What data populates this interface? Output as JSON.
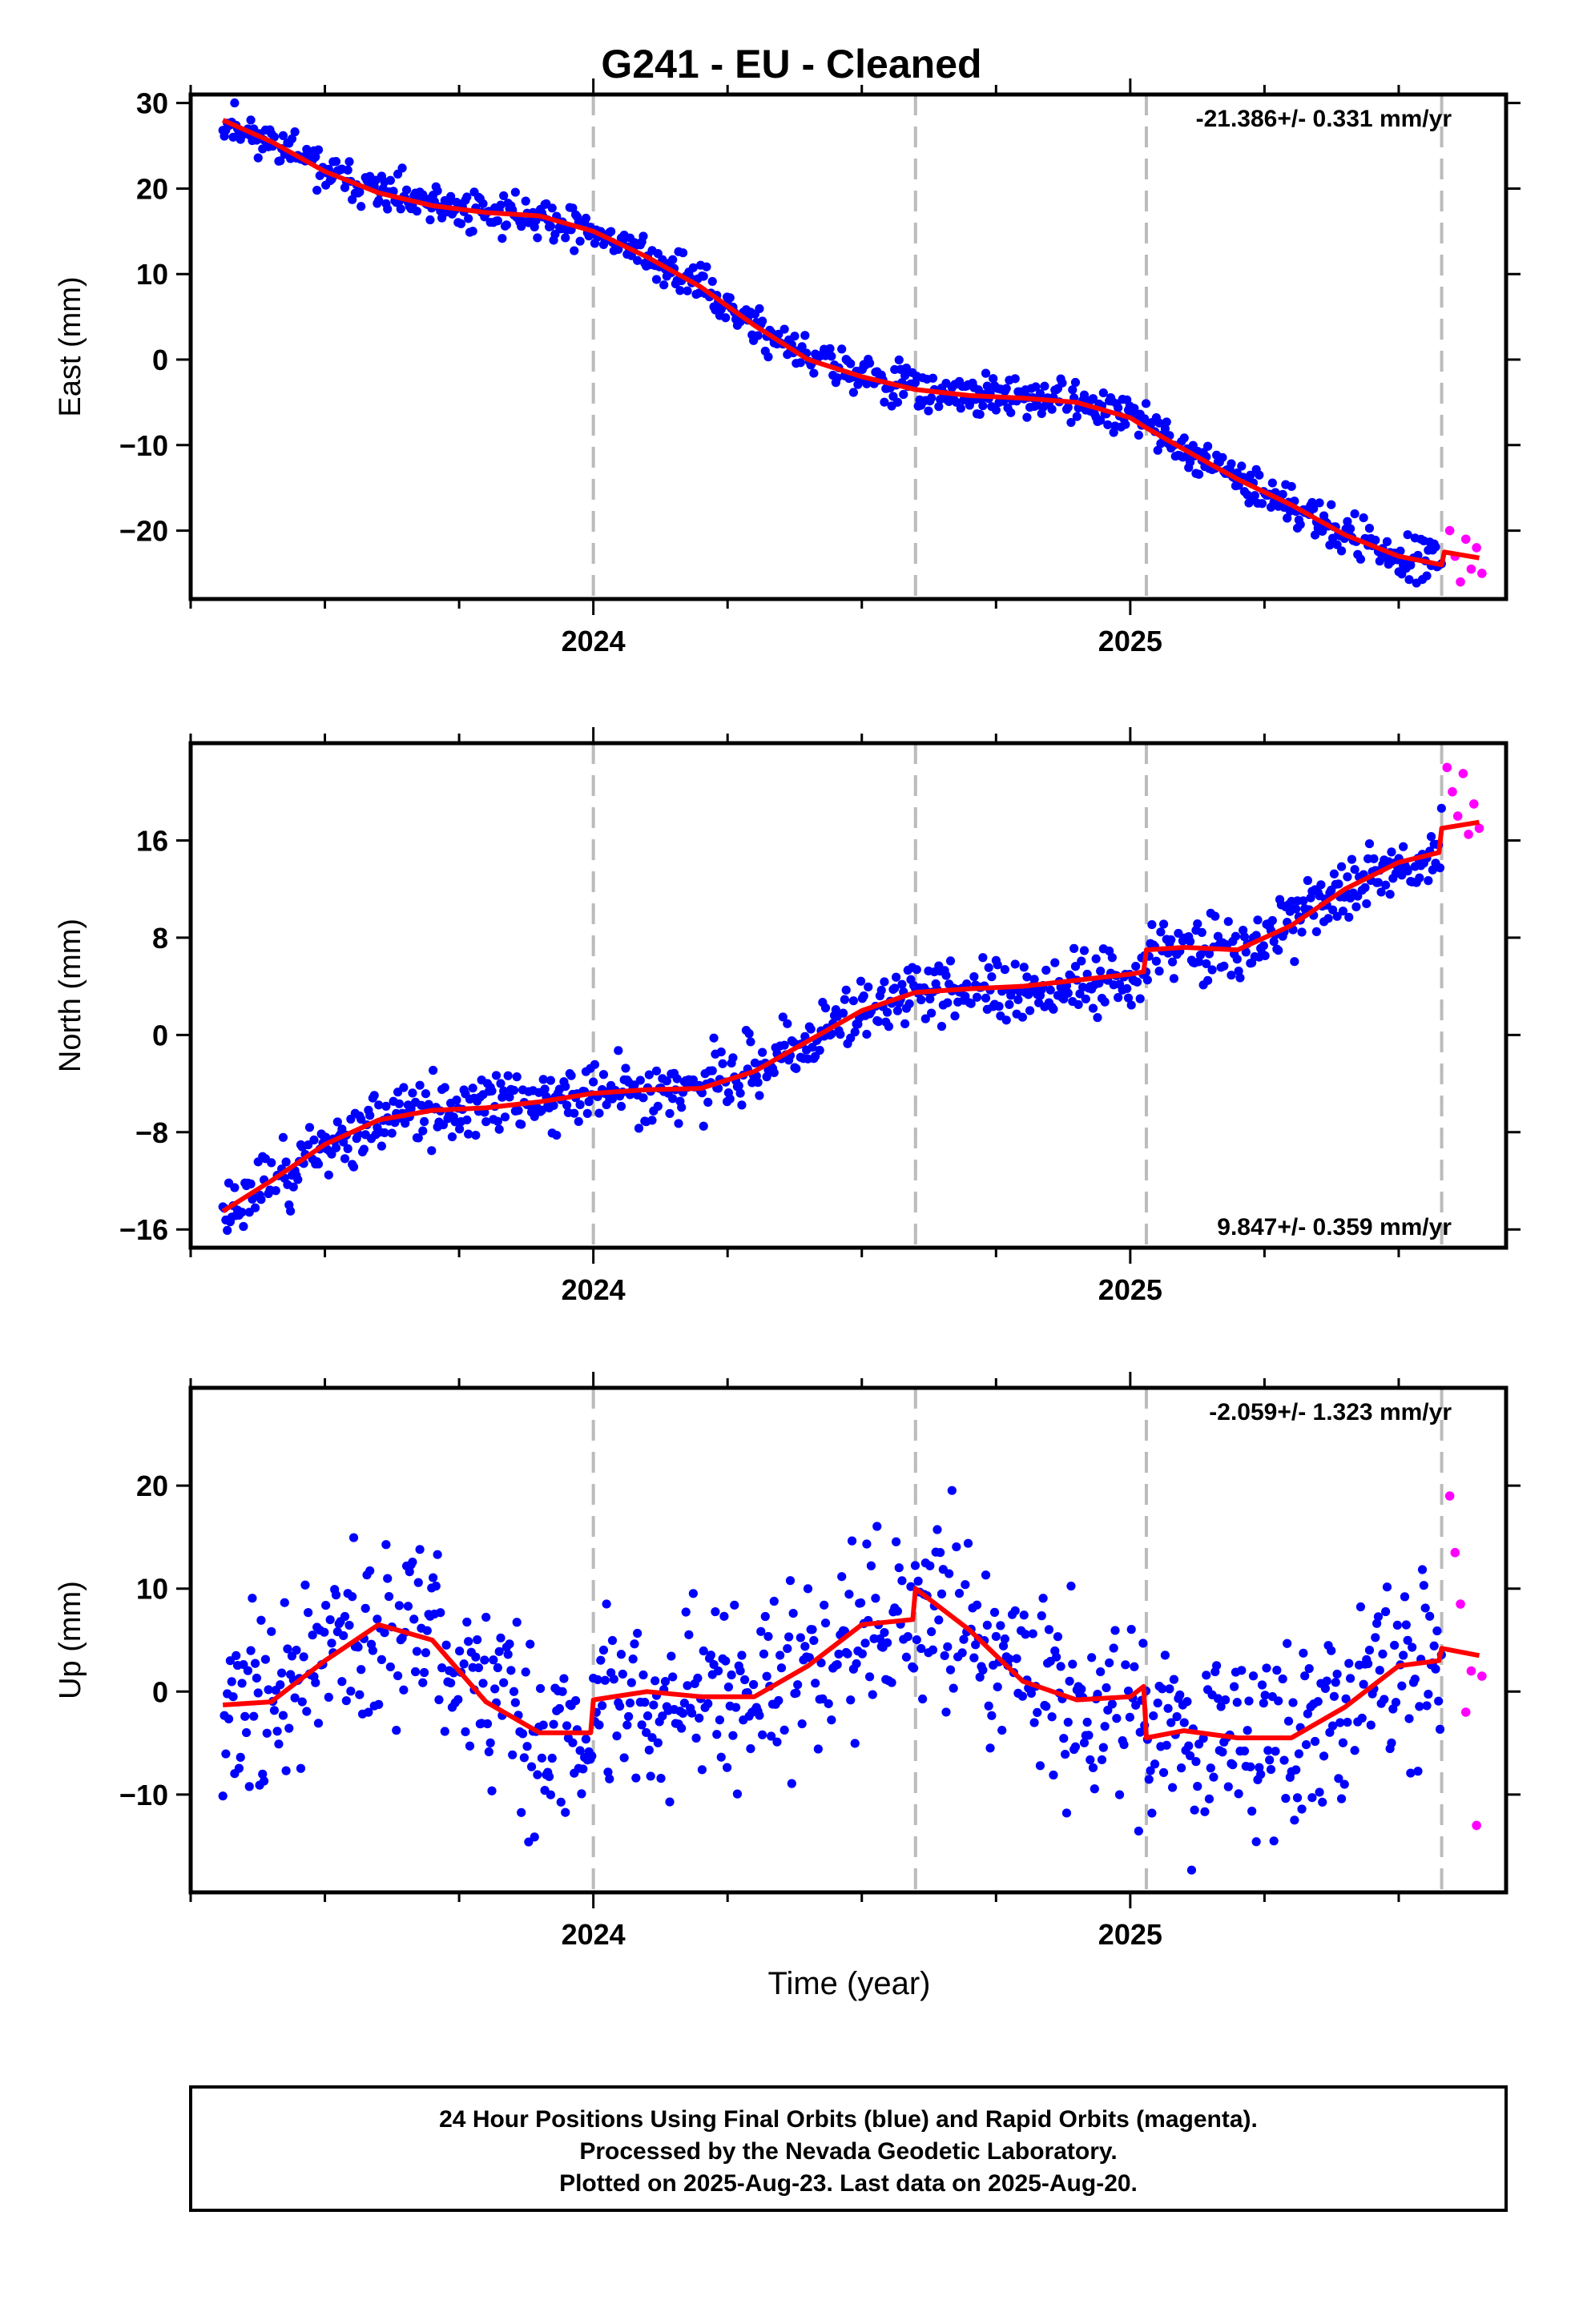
{
  "title": "G241  - EU - Cleaned",
  "footer": {
    "line1": "24 Hour Positions Using Final Orbits (blue) and Rapid Orbits (magenta).",
    "line2": "Processed by the Nevada Geodetic Laboratory.",
    "line3": "Plotted on 2025-Aug-23. Last data on 2025-Aug-20."
  },
  "colors": {
    "final": "#0000ff",
    "rapid": "#ff00ff",
    "model": "#ff0000",
    "event_line": "#bbbbbb"
  },
  "chart_data": [
    {
      "type": "scatter",
      "ylabel": "East (mm)",
      "xlabel": "",
      "rate_label": "-21.386+/- 0.331 mm/yr",
      "rate_position": "top-right",
      "xlim": [
        2023.25,
        2025.7
      ],
      "ylim": [
        -28,
        31
      ],
      "xticks": [
        2024,
        2025
      ],
      "yticks": [
        -20,
        -10,
        0,
        10,
        20,
        30
      ],
      "event_lines": [
        2024,
        2024.6,
        2025.03,
        2025.58
      ],
      "trend_knots": [
        [
          2023.31,
          28
        ],
        [
          2023.4,
          25.5
        ],
        [
          2023.5,
          22
        ],
        [
          2023.6,
          19.5
        ],
        [
          2023.7,
          18
        ],
        [
          2023.8,
          17.2
        ],
        [
          2023.9,
          16.8
        ],
        [
          2024.0,
          15
        ],
        [
          2024.1,
          12
        ],
        [
          2024.2,
          8.5
        ],
        [
          2024.3,
          4
        ],
        [
          2024.4,
          0
        ],
        [
          2024.5,
          -2
        ],
        [
          2024.6,
          -3.5
        ],
        [
          2024.7,
          -4.2
        ],
        [
          2024.8,
          -4.5
        ],
        [
          2024.9,
          -5
        ],
        [
          2025.0,
          -6.8
        ],
        [
          2025.03,
          -8
        ],
        [
          2025.1,
          -10.5
        ],
        [
          2025.2,
          -14
        ],
        [
          2025.3,
          -17
        ],
        [
          2025.4,
          -20.5
        ],
        [
          2025.5,
          -23
        ],
        [
          2025.58,
          -24
        ],
        [
          2025.585,
          -22.5
        ],
        [
          2025.65,
          -23.2
        ]
      ],
      "final_noise": 1.2,
      "final_range": [
        2023.31,
        2025.58
      ],
      "rapid_points": [
        [
          2025.595,
          -20
        ],
        [
          2025.605,
          -23
        ],
        [
          2025.615,
          -26
        ],
        [
          2025.625,
          -21
        ],
        [
          2025.635,
          -24.5
        ],
        [
          2025.645,
          -22
        ],
        [
          2025.655,
          -25
        ]
      ],
      "spread_seed": 11
    },
    {
      "type": "scatter",
      "ylabel": "North (mm)",
      "xlabel": "",
      "rate_label": "9.847+/- 0.359 mm/yr",
      "rate_position": "bottom-right",
      "xlim": [
        2023.25,
        2025.7
      ],
      "ylim": [
        -17.5,
        24
      ],
      "xticks": [
        2024,
        2025
      ],
      "yticks": [
        -16,
        -8,
        0,
        8,
        16
      ],
      "event_lines": [
        2024,
        2024.6,
        2025.03,
        2025.58
      ],
      "trend_knots": [
        [
          2023.31,
          -14.5
        ],
        [
          2023.4,
          -12
        ],
        [
          2023.5,
          -9
        ],
        [
          2023.6,
          -7
        ],
        [
          2023.7,
          -6.2
        ],
        [
          2023.8,
          -6
        ],
        [
          2023.9,
          -5.5
        ],
        [
          2024.0,
          -4.8
        ],
        [
          2024.1,
          -4.5
        ],
        [
          2024.2,
          -4.4
        ],
        [
          2024.3,
          -3
        ],
        [
          2024.4,
          -0.5
        ],
        [
          2024.5,
          2
        ],
        [
          2024.6,
          3.5
        ],
        [
          2024.7,
          3.8
        ],
        [
          2024.8,
          4
        ],
        [
          2024.9,
          4.5
        ],
        [
          2025.0,
          5
        ],
        [
          2025.025,
          5.2
        ],
        [
          2025.03,
          7
        ],
        [
          2025.1,
          7.2
        ],
        [
          2025.2,
          7
        ],
        [
          2025.3,
          9
        ],
        [
          2025.4,
          12
        ],
        [
          2025.5,
          14.2
        ],
        [
          2025.575,
          15
        ],
        [
          2025.58,
          17
        ],
        [
          2025.65,
          17.5
        ]
      ],
      "final_noise": 1.3,
      "final_range": [
        2023.31,
        2025.58
      ],
      "rapid_points": [
        [
          2025.59,
          22
        ],
        [
          2025.6,
          20
        ],
        [
          2025.61,
          18
        ],
        [
          2025.62,
          21.5
        ],
        [
          2025.63,
          16.5
        ],
        [
          2025.64,
          19
        ],
        [
          2025.65,
          17
        ]
      ],
      "spread_seed": 23
    },
    {
      "type": "scatter",
      "ylabel": "Up (mm)",
      "xlabel": "Time (year)",
      "rate_label": "-2.059+/- 1.323 mm/yr",
      "rate_position": "top-right",
      "xlim": [
        2023.25,
        2025.7
      ],
      "ylim": [
        -19.5,
        29.5
      ],
      "xticks": [
        2024,
        2025
      ],
      "yticks": [
        -10,
        0,
        10,
        20
      ],
      "event_lines": [
        2024,
        2024.6,
        2025.03,
        2025.58
      ],
      "trend_knots": [
        [
          2023.31,
          -1.3
        ],
        [
          2023.4,
          -1
        ],
        [
          2023.5,
          3
        ],
        [
          2023.6,
          6.5
        ],
        [
          2023.7,
          5
        ],
        [
          2023.8,
          -1
        ],
        [
          2023.9,
          -4
        ],
        [
          2023.995,
          -4
        ],
        [
          2024.0,
          -0.8
        ],
        [
          2024.1,
          0
        ],
        [
          2024.2,
          -0.5
        ],
        [
          2024.3,
          -0.5
        ],
        [
          2024.4,
          2.5
        ],
        [
          2024.5,
          6.5
        ],
        [
          2024.595,
          7
        ],
        [
          2024.6,
          10
        ],
        [
          2024.7,
          6
        ],
        [
          2024.8,
          1
        ],
        [
          2024.9,
          -0.8
        ],
        [
          2025.0,
          -0.5
        ],
        [
          2025.025,
          0.5
        ],
        [
          2025.03,
          -4.5
        ],
        [
          2025.1,
          -3.8
        ],
        [
          2025.2,
          -4.5
        ],
        [
          2025.3,
          -4.5
        ],
        [
          2025.4,
          -1.5
        ],
        [
          2025.5,
          2.5
        ],
        [
          2025.575,
          3
        ],
        [
          2025.58,
          4.2
        ],
        [
          2025.65,
          3.5
        ]
      ],
      "final_noise": 4.6,
      "final_range": [
        2023.31,
        2025.58
      ],
      "rapid_points": [
        [
          2025.595,
          19
        ],
        [
          2025.605,
          13.5
        ],
        [
          2025.615,
          8.5
        ],
        [
          2025.625,
          -2
        ],
        [
          2025.635,
          2
        ],
        [
          2025.645,
          -13
        ],
        [
          2025.655,
          1.5
        ]
      ],
      "spread_seed": 37
    }
  ]
}
